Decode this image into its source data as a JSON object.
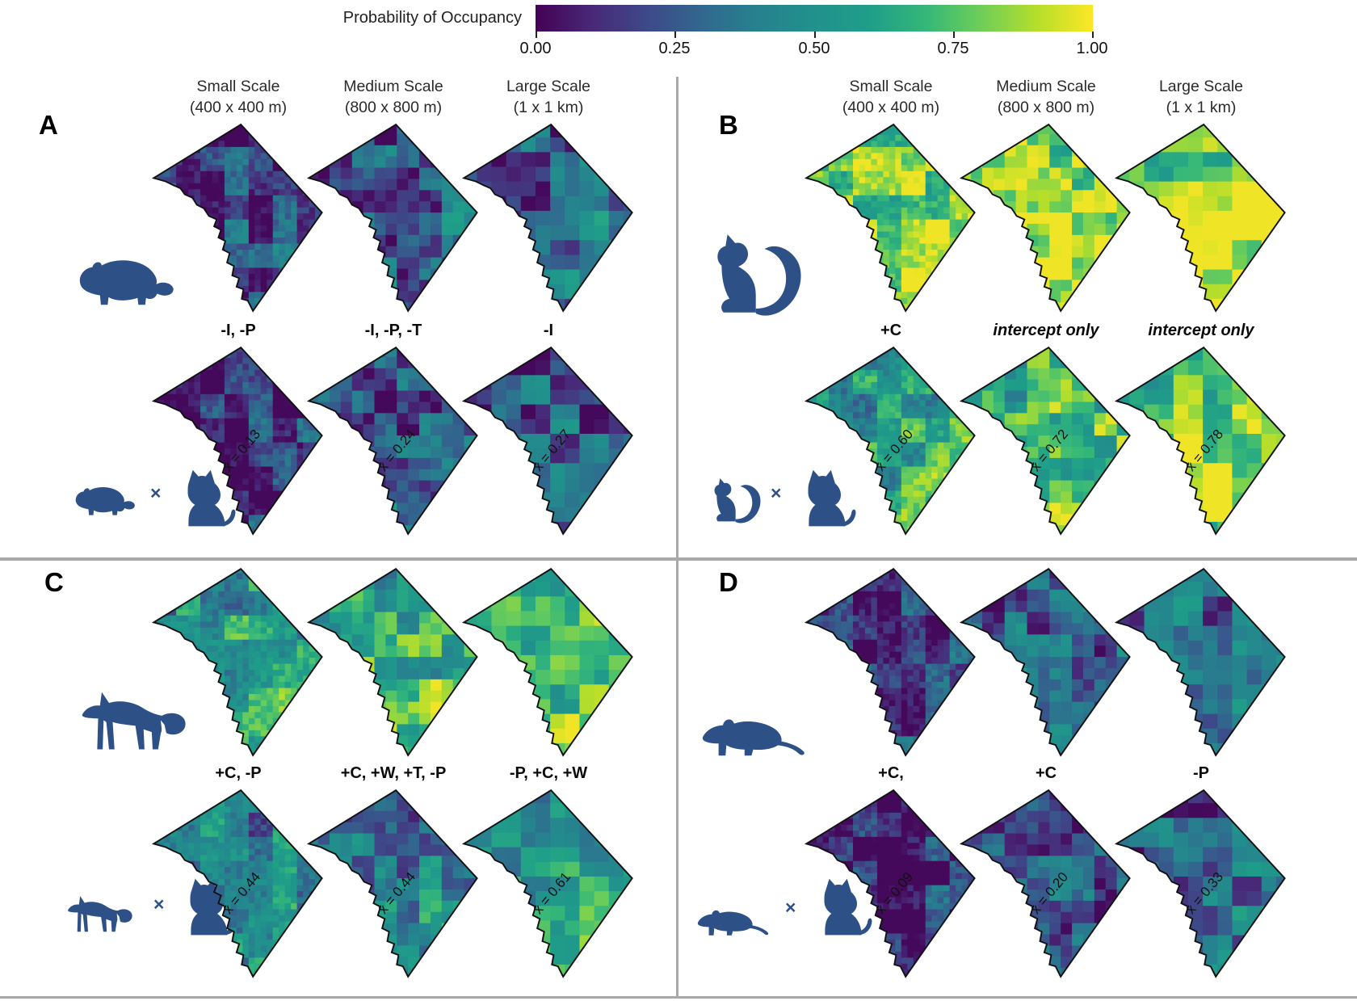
{
  "colorbar": {
    "title": "Probability of Occupancy",
    "ticks": [
      "0.00",
      "0.25",
      "0.50",
      "0.75",
      "1.00"
    ],
    "gradient": [
      "#440154",
      "#482878",
      "#3e4989",
      "#31688e",
      "#26828e",
      "#21918c",
      "#1f9e89",
      "#35b779",
      "#6ece58",
      "#b5de2b",
      "#fde725"
    ]
  },
  "scale_headers": [
    {
      "line1": "Small Scale",
      "line2": "(400 x 400 m)"
    },
    {
      "line1": "Medium Scale",
      "line2": "(800 x 800 m)"
    },
    {
      "line1": "Large Scale",
      "line2": "(1 x 1 km)"
    }
  ],
  "multiply_sign": "×",
  "colors": {
    "silhouette": "#2d5186",
    "divider": "#a9a9a9",
    "map_outline": "#111111"
  },
  "panels": [
    {
      "label": "A",
      "species": "groundhog",
      "maps_top": [
        {
          "mean_estimate": 0.18
        },
        {
          "mean_estimate": 0.28
        },
        {
          "mean_estimate": 0.3
        }
      ],
      "model_labels": [
        "-I, -P",
        "-I, -P, -T",
        "-I"
      ],
      "maps_bottom": [
        {
          "mean": 0.13,
          "label": "x̄ = 0.13"
        },
        {
          "mean": 0.24,
          "label": "x̄ = 0.24"
        },
        {
          "mean": 0.27,
          "label": "x̄ = 0.27"
        }
      ]
    },
    {
      "label": "B",
      "species": "squirrel",
      "maps_top": [
        {
          "mean_estimate": 0.82
        },
        {
          "mean_estimate": 0.93
        },
        {
          "mean_estimate": 0.93
        }
      ],
      "model_labels": [
        "+C",
        "intercept only",
        "intercept only"
      ],
      "maps_bottom": [
        {
          "mean": 0.6,
          "label": "x̄ = 0.60"
        },
        {
          "mean": 0.72,
          "label": "x̄ = 0.72"
        },
        {
          "mean": 0.78,
          "label": "x̄ = 0.78"
        }
      ]
    },
    {
      "label": "C",
      "species": "fox",
      "maps_top": [
        {
          "mean_estimate": 0.55
        },
        {
          "mean_estimate": 0.65
        },
        {
          "mean_estimate": 0.72
        }
      ],
      "model_labels": [
        "+C, -P",
        "+C, +W, +T, -P",
        "-P, +C, +W"
      ],
      "maps_bottom": [
        {
          "mean": 0.44,
          "label": "x̄ = 0.44"
        },
        {
          "mean": 0.44,
          "label": "x̄ = 0.44"
        },
        {
          "mean": 0.61,
          "label": "x̄ = 0.61"
        }
      ]
    },
    {
      "label": "D",
      "species": "rat",
      "maps_top": [
        {
          "mean_estimate": 0.16
        },
        {
          "mean_estimate": 0.3
        },
        {
          "mean_estimate": 0.35
        }
      ],
      "model_labels": [
        "+C,",
        "+C",
        "-P"
      ],
      "maps_bottom": [
        {
          "mean": 0.09,
          "label": "x̄ = 0.09"
        },
        {
          "mean": 0.2,
          "label": "x̄ = 0.20"
        },
        {
          "mean": 0.33,
          "label": "x̄ = 0.33"
        }
      ]
    }
  ],
  "chart_data": {
    "type": "heatmap",
    "title": "Probability of Occupancy",
    "colorbar_range": [
      0,
      1
    ],
    "colorbar_ticks": [
      0.0,
      0.25,
      0.5,
      0.75,
      1.0
    ],
    "colormap": "viridis",
    "region": "Washington DC boundary maps",
    "scales": [
      "Small Scale (400 x 400 m)",
      "Medium Scale (800 x 800 m)",
      "Large Scale (1 x 1 km)"
    ],
    "panels": [
      {
        "panel": "A",
        "species": "groundhog",
        "top_row_model_labels": [
          "-I, -P",
          "-I, -P, -T",
          "-I"
        ],
        "bottom_row": "groundhog × cat",
        "bottom_row_means": [
          0.13,
          0.24,
          0.27
        ]
      },
      {
        "panel": "B",
        "species": "squirrel",
        "top_row_model_labels": [
          "+C",
          "intercept only",
          "intercept only"
        ],
        "bottom_row": "squirrel × cat",
        "bottom_row_means": [
          0.6,
          0.72,
          0.78
        ]
      },
      {
        "panel": "C",
        "species": "fox",
        "top_row_model_labels": [
          "+C, -P",
          "+C, +W, +T, -P",
          "-P, +C, +W"
        ],
        "bottom_row": "fox × cat",
        "bottom_row_means": [
          0.44,
          0.44,
          0.61
        ]
      },
      {
        "panel": "D",
        "species": "rat",
        "top_row_model_labels": [
          "+C,",
          "+C",
          "-P"
        ],
        "bottom_row": "rat × cat",
        "bottom_row_means": [
          0.09,
          0.2,
          0.33
        ]
      }
    ]
  }
}
